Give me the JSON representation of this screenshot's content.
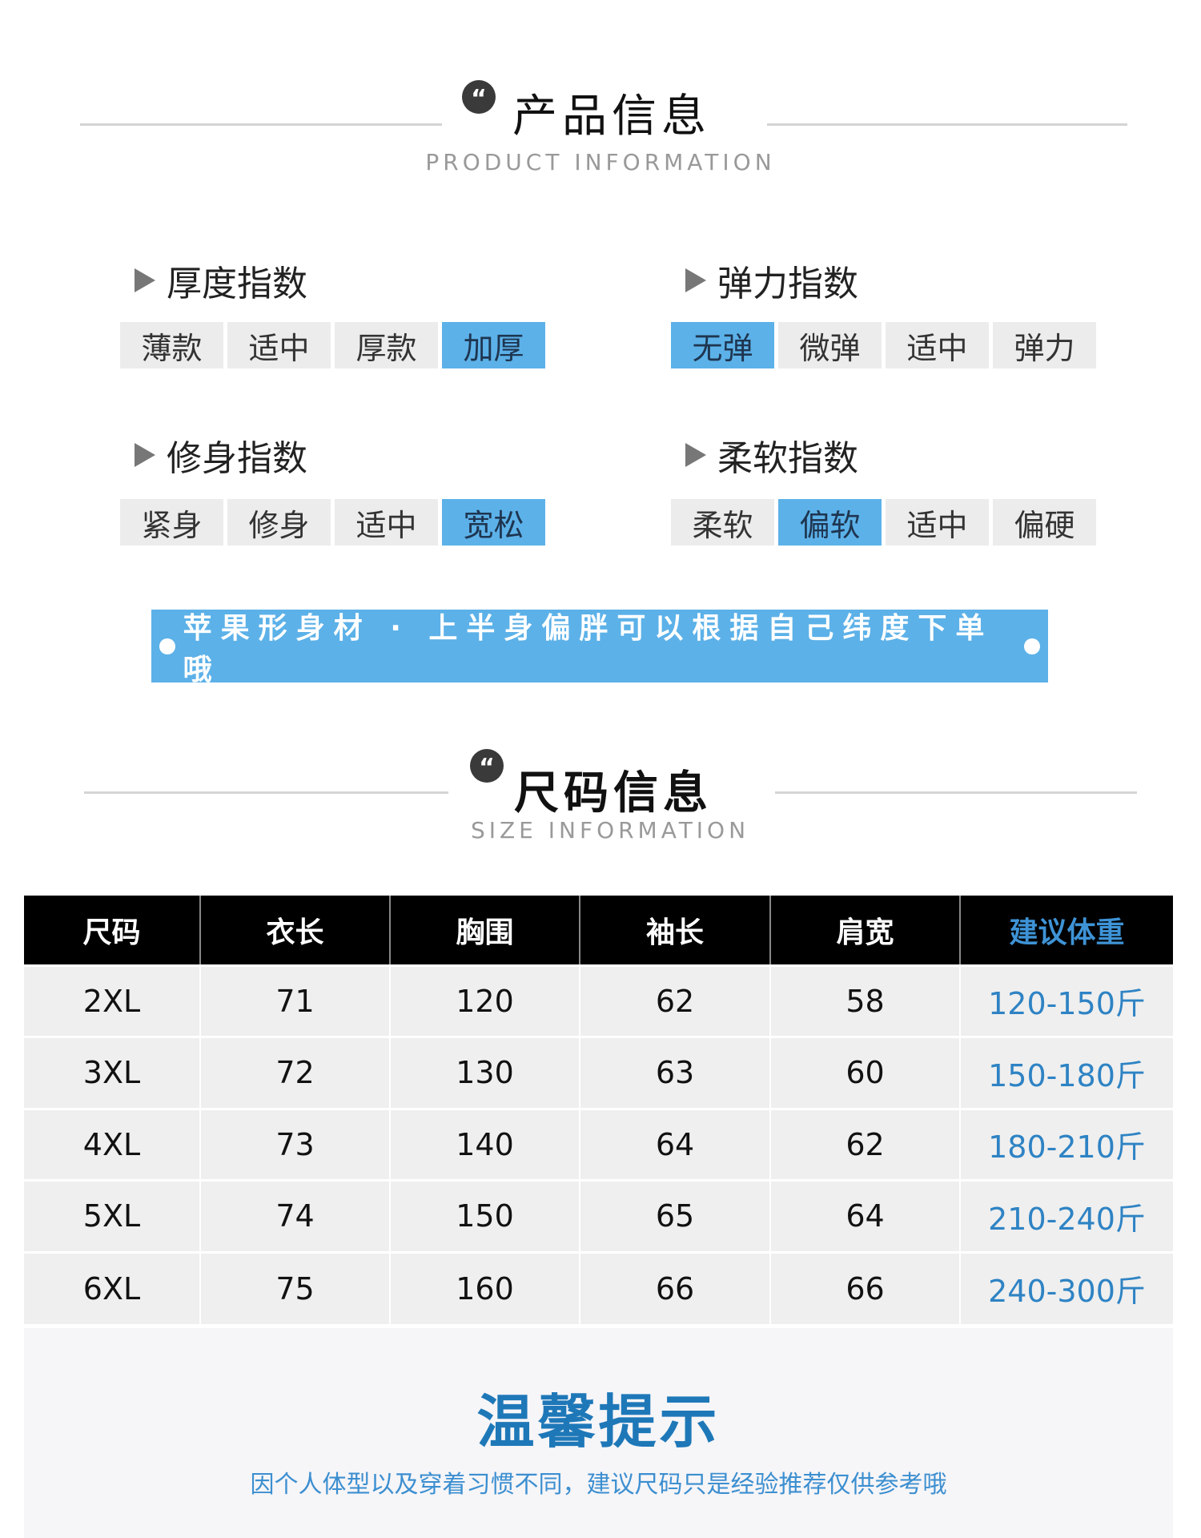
{
  "product_info": {
    "title": "产品信息",
    "subtitle": "PRODUCT INFORMATION",
    "icon": "quote-icon"
  },
  "indices": [
    {
      "label": "厚度指数",
      "options": [
        "薄款",
        "适中",
        "厚款",
        "加厚"
      ],
      "selected": 3
    },
    {
      "label": "弹力指数",
      "options": [
        "无弹",
        "微弹",
        "适中",
        "弹力"
      ],
      "selected": 0
    },
    {
      "label": "修身指数",
      "options": [
        "紧身",
        "修身",
        "适中",
        "宽松"
      ],
      "selected": 3
    },
    {
      "label": "柔软指数",
      "options": [
        "柔软",
        "偏软",
        "适中",
        "偏硬"
      ],
      "selected": 1
    }
  ],
  "banner": {
    "text": "苹果形身材 · 上半身偏胖可以根据自己纬度下单哦"
  },
  "size_info": {
    "title": "尺码信息",
    "subtitle": "SIZE  INFORMATION",
    "icon": "quote-icon"
  },
  "size_table": {
    "headers": [
      "尺码",
      "衣长",
      "胸围",
      "袖长",
      "肩宽",
      "建议体重"
    ],
    "rows": [
      [
        "2XL",
        "71",
        "120",
        "62",
        "58",
        "120-150斤"
      ],
      [
        "3XL",
        "72",
        "130",
        "63",
        "60",
        "150-180斤"
      ],
      [
        "4XL",
        "73",
        "140",
        "64",
        "62",
        "180-210斤"
      ],
      [
        "5XL",
        "74",
        "150",
        "65",
        "64",
        "210-240斤"
      ],
      [
        "6XL",
        "75",
        "160",
        "66",
        "66",
        "240-300斤"
      ]
    ]
  },
  "tip": {
    "title": "温馨提示",
    "text": "因个人体型以及穿着习惯不同，建议尺码只是经验推荐仅供参考哦"
  },
  "colors": {
    "accent": "#5cb1e8",
    "weight_text": "#2e83c4",
    "tip_title": "#1e78b8"
  }
}
